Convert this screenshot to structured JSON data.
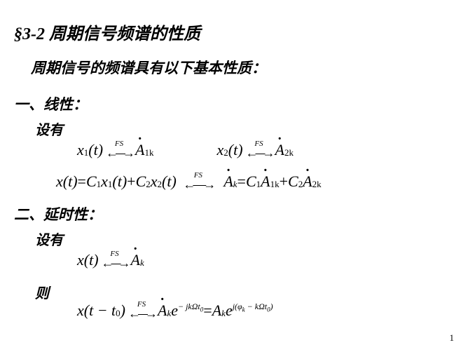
{
  "title": "§3-2  周期信号频谱的性质",
  "intro": "周期信号的频谱具有以下基本性质：",
  "s1": {
    "heading": "一、线性：",
    "given": "设有"
  },
  "s2": {
    "heading": "二、延时性：",
    "given": "设有",
    "then": "则"
  },
  "fs": "FS",
  "pageNum": "1",
  "m": {
    "x1": "x",
    "sub1": "1",
    "t": "(t)",
    "x2": "x",
    "sub2": "2",
    "A": "A",
    "k": "k",
    "k1": "1k",
    "k2": "2k",
    "xt": "x(t)",
    "eq": " = ",
    "plus": " + ",
    "C1": "C",
    "C2": "C",
    "xtt0_a": "x(t − t",
    "xtt0_b": ")",
    "t0": "0",
    "e": "e",
    "exp1a": "− jkΩt",
    "exp1b": "0",
    "exp2a": "j(φ",
    "exp2k": "k",
    "exp2b": " − kΩt",
    "exp2c": "0",
    "exp2d": ")"
  }
}
